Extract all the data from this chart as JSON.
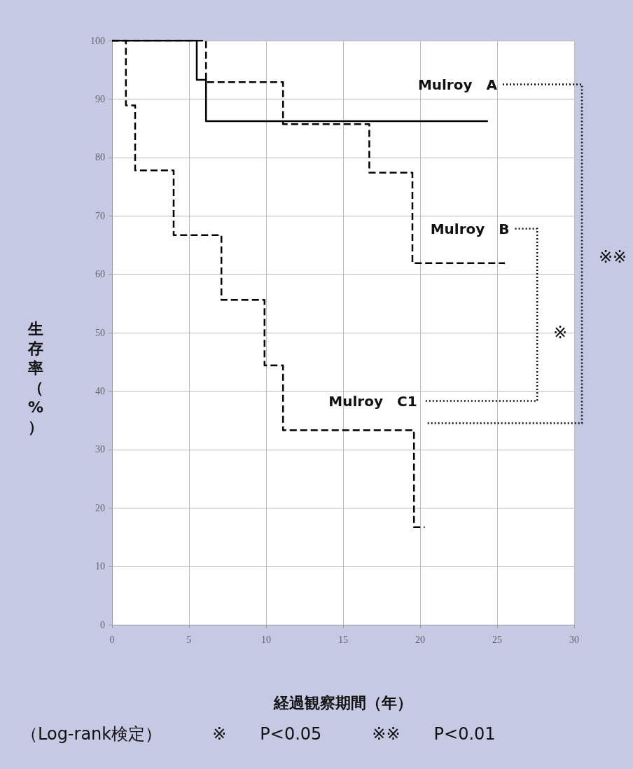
{
  "chart_data": {
    "type": "step",
    "xlabel": "経過観察期間（年）",
    "ylabel": "生存率（%）",
    "series": [
      {
        "name": "Mulroy　A",
        "color": "#000000",
        "line_style": "solid",
        "x": [
          0,
          5.5,
          6.1,
          24.4
        ],
        "values": [
          100,
          93.3,
          86.2,
          86.2
        ]
      },
      {
        "name": "Mulroy　B",
        "color": "#000000",
        "line_style": "dashed",
        "x": [
          0,
          6.1,
          11.1,
          16.7,
          19.5,
          25.5
        ],
        "values": [
          100,
          92.9,
          85.7,
          77.4,
          61.9,
          61.9
        ]
      },
      {
        "name": "Mulroy　C1",
        "color": "#000000",
        "line_style": "dashed",
        "x": [
          0,
          0.9,
          1.5,
          4.0,
          7.1,
          9.9,
          11.1,
          19.6,
          20.3
        ],
        "values": [
          100,
          88.9,
          77.8,
          66.7,
          55.6,
          44.4,
          33.3,
          16.7,
          16.7
        ]
      }
    ],
    "xlim": [
      0,
      30
    ],
    "xticks": [
      0,
      5,
      10,
      15,
      20,
      25,
      30
    ],
    "ylim": [
      0,
      100
    ],
    "yticks": [
      0,
      10,
      20,
      30,
      40,
      50,
      60,
      70,
      80,
      90,
      100
    ],
    "grid": true,
    "legend": false,
    "marker": "none",
    "annotations": [
      "※",
      "※※",
      "（Log-rank検定）　　　※　　P<0.05　　　※※　　P<0.01"
    ]
  }
}
